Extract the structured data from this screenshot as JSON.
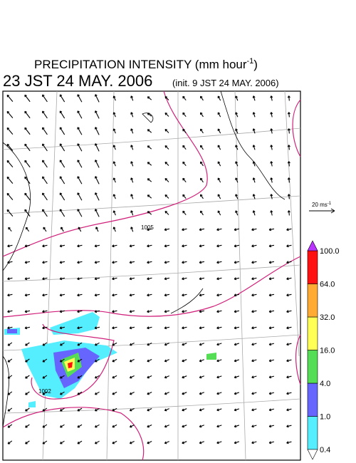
{
  "title": {
    "main": "PRECIPITATION INTENSITY (mm hour",
    "unit_exp": "-1",
    "close": ")",
    "valid": "23 JST 24 MAY. 2006",
    "init": "(init. 9 JST 24 MAY. 2006)"
  },
  "wind_scale": {
    "label": "20 ms",
    "exp": "-1"
  },
  "isobars": [
    {
      "label": "1005"
    },
    {
      "label": "1002"
    }
  ],
  "colorbar": {
    "levels": [
      0.4,
      {
        "value": 1,
        "label": "1.0"
      },
      {
        "value": 4,
        "label": "4.0"
      },
      {
        "value": 16,
        "label": "16.0"
      },
      {
        "value": 32,
        "label": "32.0"
      },
      {
        "value": 64,
        "label": "64.0"
      },
      {
        "value": 100,
        "label": "100.0"
      }
    ],
    "colors": [
      "#55eeff",
      "#6666ff",
      "#55dd55",
      "#ffff55",
      "#ffaa33",
      "#ff1111"
    ],
    "under": "#ffffff",
    "over": "#bb33ff"
  }
}
